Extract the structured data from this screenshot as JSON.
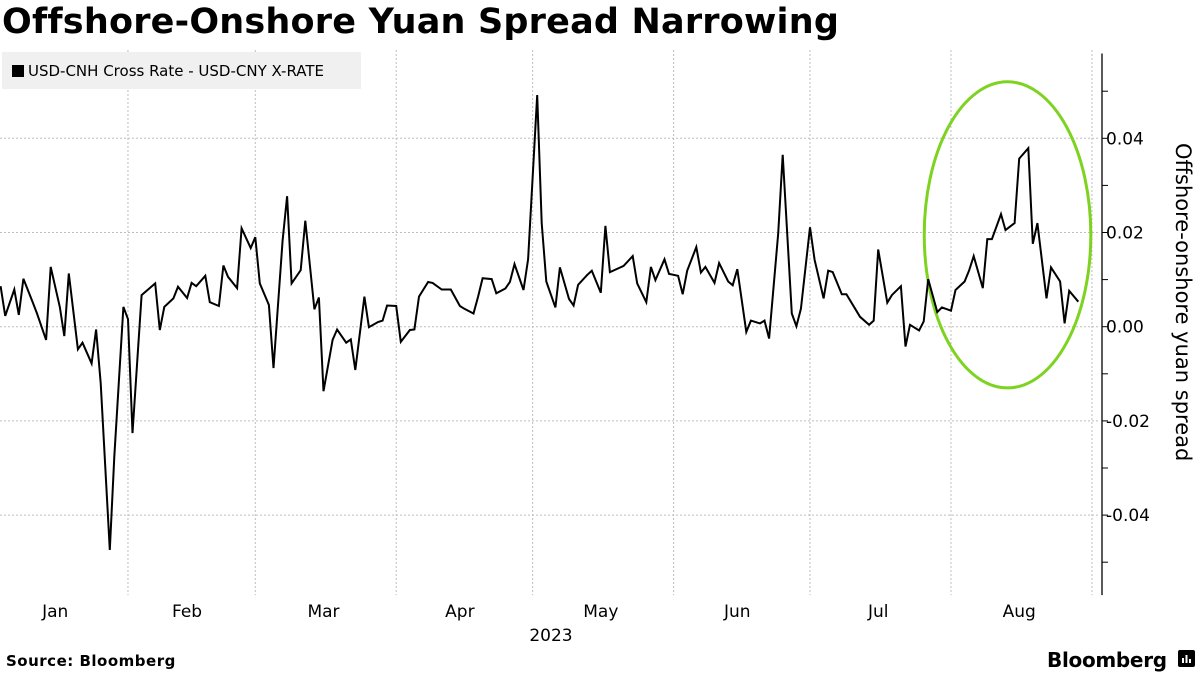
{
  "header": {
    "title": "Offshore-Onshore Yuan Spread Narrowing"
  },
  "footer": {
    "source": "Source: Bloomberg",
    "brand": "Bloomberg"
  },
  "chart_data": {
    "type": "line",
    "title": "Offshore-Onshore Yuan Spread Narrowing",
    "xlabel": "2023",
    "ylabel": "Offshore-onshore yuan spread",
    "ylim": [
      -0.057,
      0.058
    ],
    "y_ticks": [
      0.04,
      0.02,
      0.0,
      -0.02,
      -0.04
    ],
    "y_tick_labels": [
      "0.04",
      "0.02",
      "0.00",
      "-0.02",
      "-0.04"
    ],
    "x_tick_labels": [
      "Jan",
      "Feb",
      "Mar",
      "Apr",
      "May",
      "Jun",
      "Jul",
      "Aug"
    ],
    "x_year_label": "2023",
    "grid": true,
    "y_axis_side": "right",
    "legend_placement": "top-left",
    "line_color": "#000000",
    "highlight": {
      "shape": "ellipse",
      "color": "#7ED321",
      "x_range": [
        "2023-07-27",
        "2023-08-30"
      ],
      "y_range": [
        -0.013,
        0.052
      ]
    },
    "series": [
      {
        "name": "USD-CNH Cross Rate - USD-CNY X-RATE",
        "x": [
          "2023-01-04",
          "2023-01-05",
          "2023-01-07",
          "2023-01-08",
          "2023-01-09",
          "2023-01-11",
          "2023-01-12",
          "2023-01-14",
          "2023-01-15",
          "2023-01-17",
          "2023-01-18",
          "2023-01-19",
          "2023-01-21",
          "2023-01-22",
          "2023-01-24",
          "2023-01-25",
          "2023-01-26",
          "2023-01-28",
          "2023-01-29",
          "2023-01-31",
          "2023-02-01",
          "2023-02-02",
          "2023-02-04",
          "2023-02-07",
          "2023-02-08",
          "2023-02-09",
          "2023-02-11",
          "2023-02-12",
          "2023-02-14",
          "2023-02-15",
          "2023-02-16",
          "2023-02-18",
          "2023-02-19",
          "2023-02-21",
          "2023-02-22",
          "2023-02-23",
          "2023-02-25",
          "2023-02-26",
          "2023-02-28",
          "2023-03-01",
          "2023-03-02",
          "2023-03-04",
          "2023-03-05",
          "2023-03-07",
          "2023-03-08",
          "2023-03-09",
          "2023-03-11",
          "2023-03-12",
          "2023-03-14",
          "2023-03-15",
          "2023-03-16",
          "2023-03-18",
          "2023-03-19",
          "2023-03-21",
          "2023-03-22",
          "2023-03-23",
          "2023-03-25",
          "2023-03-26",
          "2023-03-28",
          "2023-03-29",
          "2023-03-30",
          "2023-04-01",
          "2023-04-02",
          "2023-04-04",
          "2023-04-05",
          "2023-04-06",
          "2023-04-08",
          "2023-04-09",
          "2023-04-11",
          "2023-04-13",
          "2023-04-15",
          "2023-04-16",
          "2023-04-18",
          "2023-04-19",
          "2023-04-20",
          "2023-04-22",
          "2023-04-23",
          "2023-04-25",
          "2023-04-26",
          "2023-04-27",
          "2023-04-29",
          "2023-04-30",
          "2023-05-02",
          "2023-05-03",
          "2023-05-04",
          "2023-05-06",
          "2023-05-07",
          "2023-05-09",
          "2023-05-10",
          "2023-05-11",
          "2023-05-13",
          "2023-05-14",
          "2023-05-16",
          "2023-05-17",
          "2023-05-18",
          "2023-05-21",
          "2023-05-23",
          "2023-05-24",
          "2023-05-26",
          "2023-05-27",
          "2023-05-28",
          "2023-05-30",
          "2023-05-31",
          "2023-06-02",
          "2023-06-03",
          "2023-06-04",
          "2023-06-06",
          "2023-06-07",
          "2023-06-08",
          "2023-06-10",
          "2023-06-11",
          "2023-06-13",
          "2023-06-14",
          "2023-06-15",
          "2023-06-17",
          "2023-06-18",
          "2023-06-20",
          "2023-06-21",
          "2023-06-22",
          "2023-06-24",
          "2023-06-25",
          "2023-06-27",
          "2023-06-28",
          "2023-06-29",
          "2023-07-01",
          "2023-07-02",
          "2023-07-04",
          "2023-07-05",
          "2023-07-06",
          "2023-07-08",
          "2023-07-09",
          "2023-07-11",
          "2023-07-12",
          "2023-07-14",
          "2023-07-15",
          "2023-07-16",
          "2023-07-18",
          "2023-07-19",
          "2023-07-21",
          "2023-07-22",
          "2023-07-23",
          "2023-07-25",
          "2023-07-26",
          "2023-07-27",
          "2023-07-29",
          "2023-07-30",
          "2023-08-01",
          "2023-08-02",
          "2023-08-04",
          "2023-08-05",
          "2023-08-06",
          "2023-08-08",
          "2023-08-09",
          "2023-08-10",
          "2023-08-12",
          "2023-08-13",
          "2023-08-15",
          "2023-08-16",
          "2023-08-18",
          "2023-08-19",
          "2023-08-20",
          "2023-08-22",
          "2023-08-23",
          "2023-08-25",
          "2023-08-26",
          "2023-08-27",
          "2023-08-29"
        ],
        "y": [
          0.0086,
          0.0023,
          0.0079,
          0.0025,
          0.0102,
          0.0053,
          0.0028,
          -0.0028,
          0.0127,
          0.0042,
          -0.002,
          0.0113,
          -0.0048,
          -0.0034,
          -0.0078,
          -0.0006,
          -0.012,
          -0.0474,
          -0.0276,
          0.0042,
          0.0016,
          -0.0226,
          0.0067,
          0.0092,
          -0.0007,
          0.0042,
          0.006,
          0.0085,
          0.0061,
          0.0093,
          0.0086,
          0.0108,
          0.0052,
          0.0044,
          0.013,
          0.0106,
          0.0082,
          0.0209,
          0.0167,
          0.019,
          0.0092,
          0.0046,
          -0.0088,
          0.0183,
          0.0277,
          0.0092,
          0.012,
          0.0225,
          0.0037,
          0.0062,
          -0.0137,
          -0.0028,
          -0.0006,
          -0.0034,
          -0.0027,
          -0.0092,
          0.0064,
          -0.0001,
          0.001,
          0.0013,
          0.0045,
          0.0044,
          -0.0032,
          -0.0007,
          -0.0006,
          0.0064,
          0.0095,
          0.0093,
          0.0079,
          0.0079,
          0.0044,
          0.0038,
          0.0028,
          0.0064,
          0.0103,
          0.0101,
          0.0071,
          0.0081,
          0.0095,
          0.0133,
          0.0078,
          0.0143,
          0.0492,
          0.022,
          0.0096,
          0.0041,
          0.0126,
          0.0059,
          0.0045,
          0.0089,
          0.011,
          0.0119,
          0.0072,
          0.0214,
          0.0116,
          0.0129,
          0.015,
          0.0092,
          0.0052,
          0.0127,
          0.0099,
          0.0143,
          0.0112,
          0.0108,
          0.0069,
          0.0119,
          0.0169,
          0.0115,
          0.0127,
          0.0093,
          0.0135,
          0.0096,
          0.0088,
          0.0122,
          -0.0011,
          0.0013,
          0.0007,
          0.0013,
          -0.0025,
          0.0198,
          0.0365,
          0.0028,
          0.0001,
          0.0038,
          0.0211,
          0.0142,
          0.006,
          0.0119,
          0.0116,
          0.0069,
          0.0069,
          0.0037,
          0.0021,
          0.0004,
          0.0013,
          0.0164,
          0.0051,
          0.0067,
          0.0086,
          -0.0042,
          0.0004,
          -0.0008,
          0.0011,
          0.0101,
          0.0031,
          0.0041,
          0.0034,
          0.0078,
          0.0096,
          0.012,
          0.015,
          0.0082,
          0.0186,
          0.0186,
          0.0239,
          0.0205,
          0.022,
          0.0357,
          0.0379,
          0.0176,
          0.022,
          0.006,
          0.0126,
          0.0096,
          0.0007,
          0.0076,
          0.0053
        ]
      }
    ]
  }
}
